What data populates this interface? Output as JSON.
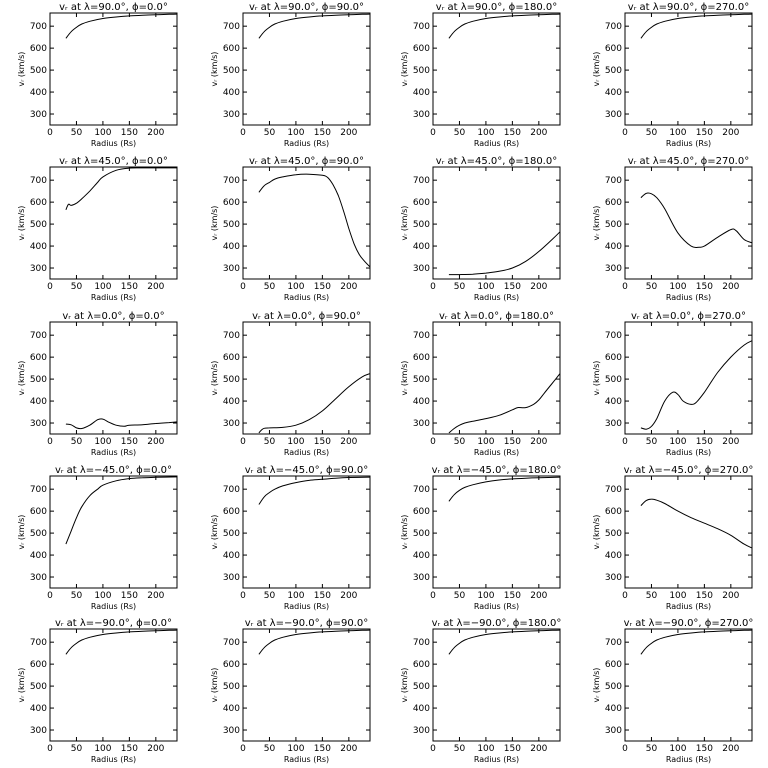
{
  "figure": {
    "x_axis_label": "Radius (Rs)",
    "y_axis_label": "vᵣ (km/s)"
  },
  "chart_data": [
    {
      "type": "line",
      "title": "vᵣ at λ=90.0°, ϕ=0.0°",
      "xlabel": "Radius (Rs)",
      "ylabel": "vᵣ (km/s)",
      "xlim": [
        0,
        240
      ],
      "ylim": [
        250,
        760
      ],
      "xticks": [
        0,
        50,
        100,
        150,
        200
      ],
      "yticks": [
        300,
        400,
        500,
        600,
        700
      ],
      "series": [
        {
          "x": [
            30,
            40,
            50,
            60,
            75,
            100,
            125,
            150,
            175,
            200,
            225,
            240
          ],
          "y": [
            645,
            675,
            695,
            710,
            722,
            735,
            742,
            747,
            750,
            752,
            754,
            755
          ]
        }
      ]
    },
    {
      "type": "line",
      "title": "vᵣ at λ=90.0°, ϕ=90.0°",
      "xlabel": "Radius (Rs)",
      "ylabel": "vᵣ (km/s)",
      "xlim": [
        0,
        240
      ],
      "ylim": [
        250,
        760
      ],
      "xticks": [
        0,
        50,
        100,
        150,
        200
      ],
      "yticks": [
        300,
        400,
        500,
        600,
        700
      ],
      "series": [
        {
          "x": [
            30,
            40,
            50,
            60,
            75,
            100,
            125,
            150,
            175,
            200,
            225,
            240
          ],
          "y": [
            645,
            675,
            695,
            710,
            722,
            735,
            742,
            747,
            750,
            752,
            754,
            755
          ]
        }
      ]
    },
    {
      "type": "line",
      "title": "vᵣ at λ=90.0°, ϕ=180.0°",
      "xlabel": "Radius (Rs)",
      "ylabel": "vᵣ (km/s)",
      "xlim": [
        0,
        240
      ],
      "ylim": [
        250,
        760
      ],
      "xticks": [
        0,
        50,
        100,
        150,
        200
      ],
      "yticks": [
        300,
        400,
        500,
        600,
        700
      ],
      "series": [
        {
          "x": [
            30,
            40,
            50,
            60,
            75,
            100,
            125,
            150,
            175,
            200,
            225,
            240
          ],
          "y": [
            645,
            675,
            695,
            710,
            722,
            735,
            742,
            747,
            750,
            752,
            754,
            755
          ]
        }
      ]
    },
    {
      "type": "line",
      "title": "vᵣ at λ=90.0°, ϕ=270.0°",
      "xlabel": "Radius (Rs)",
      "ylabel": "vᵣ (km/s)",
      "xlim": [
        0,
        240
      ],
      "ylim": [
        250,
        760
      ],
      "xticks": [
        0,
        50,
        100,
        150,
        200
      ],
      "yticks": [
        300,
        400,
        500,
        600,
        700
      ],
      "series": [
        {
          "x": [
            30,
            40,
            50,
            60,
            75,
            100,
            125,
            150,
            175,
            200,
            225,
            240
          ],
          "y": [
            645,
            675,
            695,
            710,
            722,
            735,
            742,
            747,
            750,
            752,
            754,
            755
          ]
        }
      ]
    },
    {
      "type": "line",
      "title": "vᵣ at λ=45.0°, ϕ=0.0°",
      "xlabel": "Radius (Rs)",
      "ylabel": "vᵣ (km/s)",
      "xlim": [
        0,
        240
      ],
      "ylim": [
        250,
        760
      ],
      "xticks": [
        0,
        50,
        100,
        150,
        200
      ],
      "yticks": [
        300,
        400,
        500,
        600,
        700
      ],
      "series": [
        {
          "x": [
            30,
            35,
            40,
            50,
            60,
            75,
            90,
            100,
            125,
            150,
            175,
            200,
            240
          ],
          "y": [
            565,
            590,
            585,
            595,
            615,
            650,
            690,
            715,
            745,
            755,
            756,
            756,
            756
          ]
        }
      ]
    },
    {
      "type": "line",
      "title": "vᵣ at λ=45.0°, ϕ=90.0°",
      "xlabel": "Radius (Rs)",
      "ylabel": "vᵣ (km/s)",
      "xlim": [
        0,
        240
      ],
      "ylim": [
        250,
        760
      ],
      "xticks": [
        0,
        50,
        100,
        150,
        200
      ],
      "yticks": [
        300,
        400,
        500,
        600,
        700
      ],
      "series": [
        {
          "x": [
            30,
            40,
            50,
            60,
            75,
            100,
            125,
            150,
            160,
            170,
            180,
            190,
            200,
            210,
            220,
            230,
            240
          ],
          "y": [
            645,
            675,
            690,
            705,
            715,
            725,
            727,
            722,
            712,
            680,
            630,
            560,
            480,
            410,
            360,
            330,
            305
          ]
        }
      ]
    },
    {
      "type": "line",
      "title": "vᵣ at λ=45.0°, ϕ=180.0°",
      "xlabel": "Radius (Rs)",
      "ylabel": "vᵣ (km/s)",
      "xlim": [
        0,
        240
      ],
      "ylim": [
        250,
        760
      ],
      "xticks": [
        0,
        50,
        100,
        150,
        200
      ],
      "yticks": [
        300,
        400,
        500,
        600,
        700
      ],
      "series": [
        {
          "x": [
            30,
            50,
            75,
            100,
            125,
            150,
            175,
            200,
            225,
            240
          ],
          "y": [
            270,
            270,
            272,
            277,
            285,
            300,
            330,
            375,
            430,
            465
          ]
        }
      ]
    },
    {
      "type": "line",
      "title": "vᵣ at λ=45.0°, ϕ=270.0°",
      "xlabel": "Radius (Rs)",
      "ylabel": "vᵣ (km/s)",
      "xlim": [
        0,
        240
      ],
      "ylim": [
        250,
        760
      ],
      "xticks": [
        0,
        50,
        100,
        150,
        200
      ],
      "yticks": [
        300,
        400,
        500,
        600,
        700
      ],
      "series": [
        {
          "x": [
            30,
            40,
            50,
            60,
            75,
            100,
            125,
            140,
            150,
            175,
            200,
            210,
            225,
            240
          ],
          "y": [
            620,
            640,
            638,
            620,
            570,
            460,
            400,
            395,
            400,
            440,
            475,
            470,
            430,
            415
          ]
        }
      ]
    },
    {
      "type": "line",
      "title": "vᵣ at λ=0.0°, ϕ=0.0°",
      "xlabel": "Radius (Rs)",
      "ylabel": "vᵣ (km/s)",
      "xlim": [
        0,
        240
      ],
      "ylim": [
        250,
        760
      ],
      "xticks": [
        0,
        50,
        100,
        150,
        200
      ],
      "yticks": [
        300,
        400,
        500,
        600,
        700
      ],
      "series": [
        {
          "x": [
            30,
            40,
            50,
            60,
            75,
            90,
            100,
            110,
            125,
            140,
            150,
            175,
            200,
            225,
            240
          ],
          "y": [
            295,
            292,
            278,
            275,
            290,
            315,
            318,
            305,
            290,
            285,
            290,
            292,
            298,
            302,
            305
          ]
        }
      ]
    },
    {
      "type": "line",
      "title": "vᵣ at λ=0.0°, ϕ=90.0°",
      "xlabel": "Radius (Rs)",
      "ylabel": "vᵣ (km/s)",
      "xlim": [
        0,
        240
      ],
      "ylim": [
        250,
        760
      ],
      "xticks": [
        0,
        50,
        100,
        150,
        200
      ],
      "yticks": [
        300,
        400,
        500,
        600,
        700
      ],
      "series": [
        {
          "x": [
            30,
            35,
            40,
            50,
            75,
            100,
            125,
            150,
            175,
            200,
            225,
            240
          ],
          "y": [
            255,
            268,
            276,
            278,
            280,
            290,
            315,
            355,
            410,
            465,
            510,
            525
          ]
        }
      ]
    },
    {
      "type": "line",
      "title": "vᵣ at λ=0.0°, ϕ=180.0°",
      "xlabel": "Radius (Rs)",
      "ylabel": "vᵣ (km/s)",
      "xlim": [
        0,
        240
      ],
      "ylim": [
        250,
        760
      ],
      "xticks": [
        0,
        50,
        100,
        150,
        200
      ],
      "yticks": [
        300,
        400,
        500,
        600,
        700
      ],
      "series": [
        {
          "x": [
            30,
            40,
            50,
            60,
            75,
            100,
            125,
            150,
            160,
            175,
            190,
            200,
            210,
            225,
            240
          ],
          "y": [
            255,
            275,
            290,
            300,
            308,
            320,
            335,
            360,
            370,
            370,
            385,
            405,
            435,
            480,
            525
          ]
        }
      ]
    },
    {
      "type": "line",
      "title": "vᵣ at λ=0.0°, ϕ=270.0°",
      "xlabel": "Radius (Rs)",
      "ylabel": "vᵣ (km/s)",
      "xlim": [
        0,
        240
      ],
      "ylim": [
        250,
        760
      ],
      "xticks": [
        0,
        50,
        100,
        150,
        200
      ],
      "yticks": [
        300,
        400,
        500,
        600,
        700
      ],
      "series": [
        {
          "x": [
            30,
            40,
            50,
            60,
            75,
            90,
            100,
            110,
            125,
            135,
            150,
            175,
            200,
            225,
            240
          ],
          "y": [
            278,
            272,
            285,
            320,
            400,
            440,
            430,
            400,
            385,
            395,
            440,
            530,
            600,
            655,
            675
          ]
        }
      ]
    },
    {
      "type": "line",
      "title": "vᵣ at λ=−45.0°, ϕ=0.0°",
      "xlabel": "Radius (Rs)",
      "ylabel": "vᵣ (km/s)",
      "xlim": [
        0,
        240
      ],
      "ylim": [
        250,
        760
      ],
      "xticks": [
        0,
        50,
        100,
        150,
        200
      ],
      "yticks": [
        300,
        400,
        500,
        600,
        700
      ],
      "series": [
        {
          "x": [
            30,
            40,
            50,
            60,
            75,
            90,
            100,
            125,
            150,
            175,
            200,
            240
          ],
          "y": [
            450,
            510,
            570,
            620,
            670,
            700,
            718,
            738,
            748,
            752,
            754,
            756
          ]
        }
      ]
    },
    {
      "type": "line",
      "title": "vᵣ at λ=−45.0°, ϕ=90.0°",
      "xlabel": "Radius (Rs)",
      "ylabel": "vᵣ (km/s)",
      "xlim": [
        0,
        240
      ],
      "ylim": [
        250,
        760
      ],
      "xticks": [
        0,
        50,
        100,
        150,
        200
      ],
      "yticks": [
        300,
        400,
        500,
        600,
        700
      ],
      "series": [
        {
          "x": [
            30,
            40,
            50,
            60,
            75,
            100,
            125,
            150,
            175,
            200,
            240
          ],
          "y": [
            630,
            665,
            685,
            700,
            715,
            730,
            740,
            745,
            750,
            753,
            755
          ]
        }
      ]
    },
    {
      "type": "line",
      "title": "vᵣ at λ=−45.0°, ϕ=180.0°",
      "xlabel": "Radius (Rs)",
      "ylabel": "vᵣ (km/s)",
      "xlim": [
        0,
        240
      ],
      "ylim": [
        250,
        760
      ],
      "xticks": [
        0,
        50,
        100,
        150,
        200
      ],
      "yticks": [
        300,
        400,
        500,
        600,
        700
      ],
      "series": [
        {
          "x": [
            30,
            40,
            50,
            60,
            75,
            100,
            125,
            150,
            175,
            200,
            240
          ],
          "y": [
            645,
            675,
            695,
            708,
            720,
            733,
            742,
            747,
            750,
            752,
            755
          ]
        }
      ]
    },
    {
      "type": "line",
      "title": "vᵣ at λ=−45.0°, ϕ=270.0°",
      "xlabel": "Radius (Rs)",
      "ylabel": "vᵣ (km/s)",
      "xlim": [
        0,
        240
      ],
      "ylim": [
        250,
        760
      ],
      "xticks": [
        0,
        50,
        100,
        150,
        200
      ],
      "yticks": [
        300,
        400,
        500,
        600,
        700
      ],
      "series": [
        {
          "x": [
            30,
            40,
            50,
            60,
            75,
            100,
            125,
            150,
            175,
            200,
            225,
            240
          ],
          "y": [
            625,
            648,
            655,
            650,
            635,
            600,
            570,
            545,
            520,
            490,
            450,
            432
          ]
        }
      ]
    },
    {
      "type": "line",
      "title": "vᵣ at λ=−90.0°, ϕ=0.0°",
      "xlabel": "Radius (Rs)",
      "ylabel": "vᵣ (km/s)",
      "xlim": [
        0,
        240
      ],
      "ylim": [
        250,
        760
      ],
      "xticks": [
        0,
        50,
        100,
        150,
        200
      ],
      "yticks": [
        300,
        400,
        500,
        600,
        700
      ],
      "series": [
        {
          "x": [
            30,
            40,
            50,
            60,
            75,
            100,
            125,
            150,
            175,
            200,
            225,
            240
          ],
          "y": [
            645,
            675,
            695,
            710,
            722,
            735,
            742,
            747,
            750,
            752,
            754,
            755
          ]
        }
      ]
    },
    {
      "type": "line",
      "title": "vᵣ at λ=−90.0°, ϕ=90.0°",
      "xlabel": "Radius (Rs)",
      "ylabel": "vᵣ (km/s)",
      "xlim": [
        0,
        240
      ],
      "ylim": [
        250,
        760
      ],
      "xticks": [
        0,
        50,
        100,
        150,
        200
      ],
      "yticks": [
        300,
        400,
        500,
        600,
        700
      ],
      "series": [
        {
          "x": [
            30,
            40,
            50,
            60,
            75,
            100,
            125,
            150,
            175,
            200,
            225,
            240
          ],
          "y": [
            645,
            675,
            695,
            710,
            722,
            735,
            742,
            747,
            750,
            752,
            754,
            755
          ]
        }
      ]
    },
    {
      "type": "line",
      "title": "vᵣ at λ=−90.0°, ϕ=180.0°",
      "xlabel": "Radius (Rs)",
      "ylabel": "vᵣ (km/s)",
      "xlim": [
        0,
        240
      ],
      "ylim": [
        250,
        760
      ],
      "xticks": [
        0,
        50,
        100,
        150,
        200
      ],
      "yticks": [
        300,
        400,
        500,
        600,
        700
      ],
      "series": [
        {
          "x": [
            30,
            40,
            50,
            60,
            75,
            100,
            125,
            150,
            175,
            200,
            225,
            240
          ],
          "y": [
            645,
            675,
            695,
            710,
            722,
            735,
            742,
            747,
            750,
            752,
            754,
            755
          ]
        }
      ]
    },
    {
      "type": "line",
      "title": "vᵣ at λ=−90.0°, ϕ=270.0°",
      "xlabel": "Radius (Rs)",
      "ylabel": "vᵣ (km/s)",
      "xlim": [
        0,
        240
      ],
      "ylim": [
        250,
        760
      ],
      "xticks": [
        0,
        50,
        100,
        150,
        200
      ],
      "yticks": [
        300,
        400,
        500,
        600,
        700
      ],
      "series": [
        {
          "x": [
            30,
            40,
            50,
            60,
            75,
            100,
            125,
            150,
            175,
            200,
            225,
            240
          ],
          "y": [
            645,
            675,
            695,
            710,
            722,
            735,
            742,
            747,
            750,
            752,
            754,
            755
          ]
        }
      ]
    }
  ]
}
